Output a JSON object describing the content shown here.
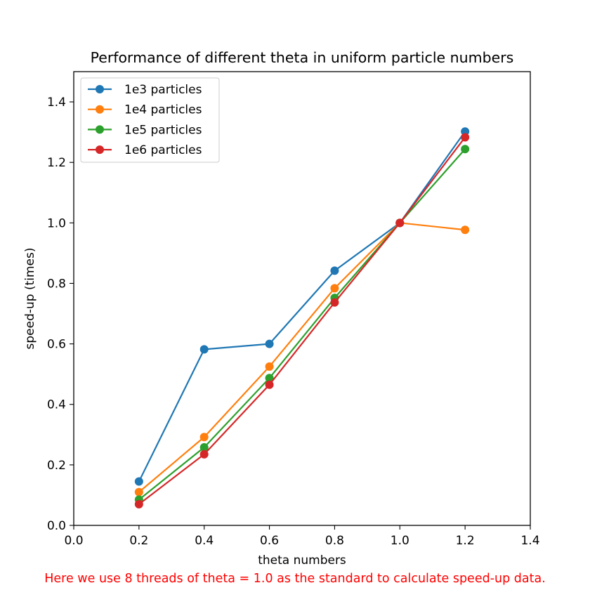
{
  "chart_data": {
    "type": "line",
    "title": "Performance of different theta in uniform particle numbers",
    "xlabel": "theta numbers",
    "ylabel": "speed-up (times)",
    "xlim": [
      0.0,
      1.4
    ],
    "ylim": [
      0.0,
      1.5
    ],
    "xticks": [
      0.0,
      0.2,
      0.4,
      0.6,
      0.8,
      1.0,
      1.2,
      1.4
    ],
    "xtick_labels": [
      "0.0",
      "0.2",
      "0.4",
      "0.6",
      "0.8",
      "1.0",
      "1.2",
      "1.4"
    ],
    "yticks": [
      0.0,
      0.2,
      0.4,
      0.6,
      0.8,
      1.0,
      1.2,
      1.4
    ],
    "ytick_labels": [
      "0.0",
      "0.2",
      "0.4",
      "0.6",
      "0.8",
      "1.0",
      "1.2",
      "1.4"
    ],
    "grid": false,
    "legend_position": "upper-left",
    "x": [
      0.2,
      0.4,
      0.6,
      0.8,
      1.0,
      1.2
    ],
    "series": [
      {
        "name": "1e3 particles",
        "color": "#1f77b4",
        "values": [
          0.145,
          0.582,
          0.6,
          0.842,
          1.0,
          1.302
        ]
      },
      {
        "name": "1e4 particles",
        "color": "#ff7f0e",
        "values": [
          0.11,
          0.292,
          0.525,
          0.784,
          1.0,
          0.977
        ]
      },
      {
        "name": "1e5 particles",
        "color": "#2ca02c",
        "values": [
          0.085,
          0.258,
          0.487,
          0.752,
          1.0,
          1.244
        ]
      },
      {
        "name": "1e6 particles",
        "color": "#d62728",
        "values": [
          0.07,
          0.235,
          0.465,
          0.737,
          1.0,
          1.283
        ]
      }
    ],
    "annotation": {
      "text": "Here we use 8 threads of theta = 1.0 as the standard to calculate speed-up data.",
      "color": "#ff0000"
    }
  }
}
